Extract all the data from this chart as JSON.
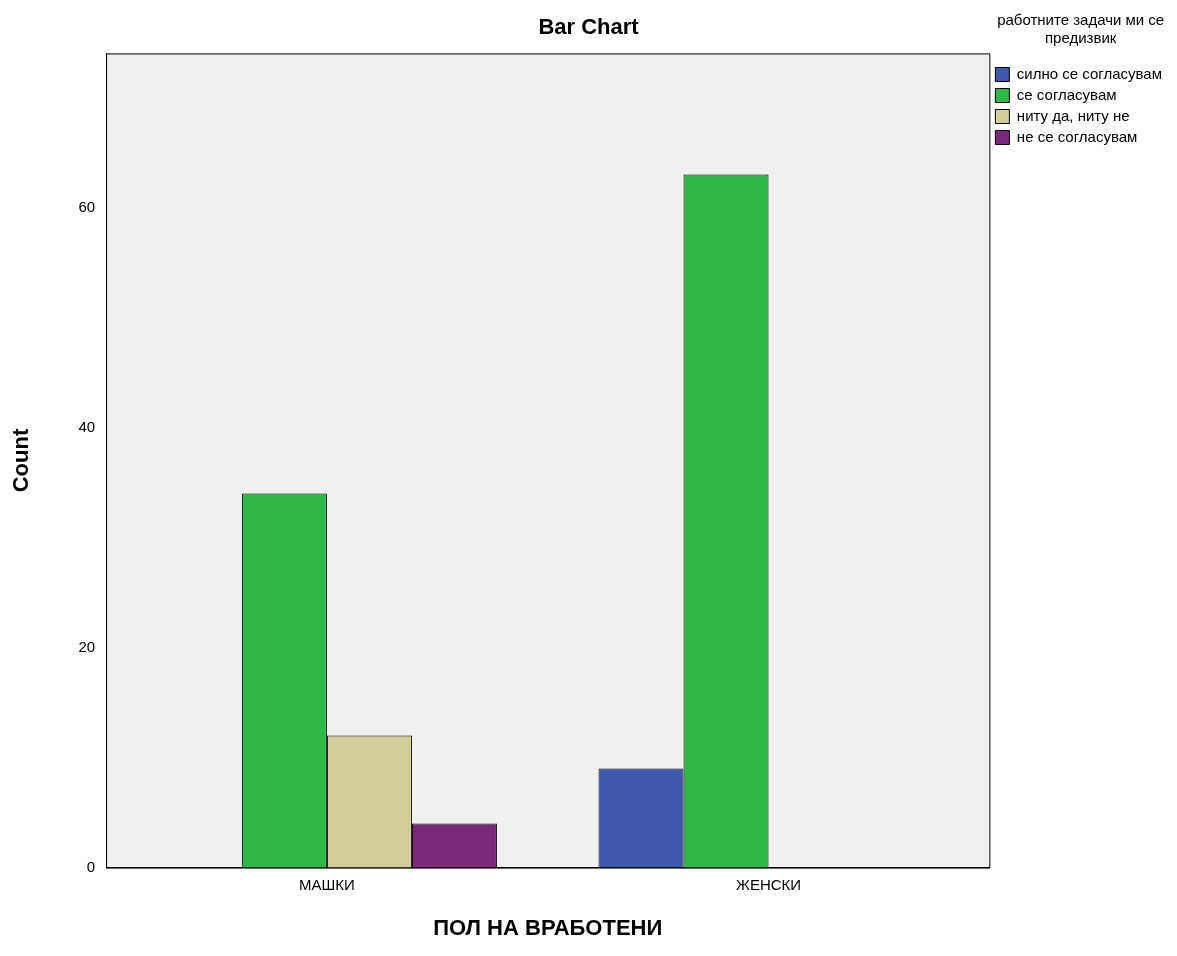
{
  "chart_data": {
    "type": "bar",
    "title": "Bar Chart",
    "xlabel": "ПОЛ НА ВРАБОТЕНИ",
    "ylabel": "Count",
    "legend_title": "работните задачи ми се предизвик",
    "categories": [
      "МАШКИ",
      "ЖЕНСКИ"
    ],
    "series": [
      {
        "name": "силно се согласувам",
        "color": "#3e58ac",
        "values": [
          null,
          9
        ]
      },
      {
        "name": "се согласувам",
        "color": "#2eb848",
        "values": [
          34,
          63
        ]
      },
      {
        "name": "ниту да, ниту не",
        "color": "#d3ce97",
        "values": [
          12,
          null
        ]
      },
      {
        "name": "не се согласувам",
        "color": "#7c287d",
        "values": [
          4,
          null
        ]
      }
    ],
    "ylim": [
      0,
      74
    ],
    "yticks": [
      0,
      20,
      40,
      60
    ],
    "grid": false,
    "legend": "top right"
  }
}
